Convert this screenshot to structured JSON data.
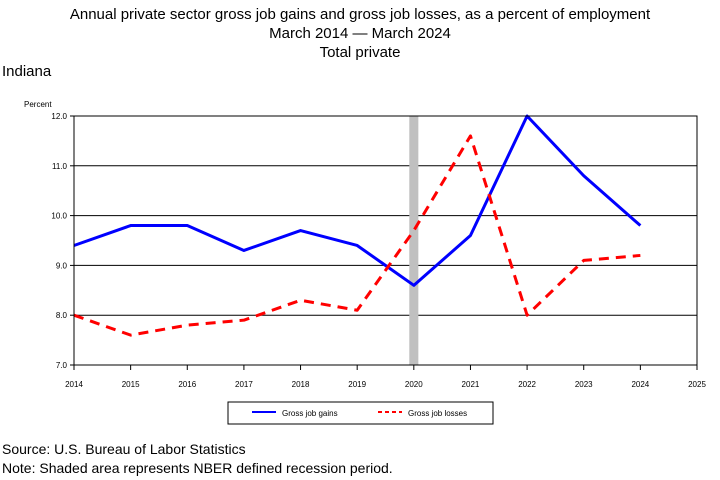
{
  "header": {
    "title_line1": "Annual private sector gross job gains and gross job losses, as a percent of employment",
    "title_line2": "March 2014 — March 2024",
    "title_line3": "Total private"
  },
  "region": "Indiana",
  "footer": {
    "source": "Source: U.S. Bureau of Labor Statistics",
    "note": "Note: Shaded area represents NBER defined recession period."
  },
  "chart_data": {
    "type": "line",
    "title": "Annual private sector gross job gains and gross job losses, as a percent of employment",
    "subtitle": "March 2014 — March 2024",
    "ylabel": "Percent",
    "xlabel": "",
    "x": [
      2014,
      2015,
      2016,
      2017,
      2018,
      2019,
      2020,
      2021,
      2022,
      2023,
      2024
    ],
    "xticks": [
      "2014",
      "2015",
      "2016",
      "2017",
      "2018",
      "2019",
      "2020",
      "2021",
      "2022",
      "2023",
      "2024",
      "2025"
    ],
    "xlim": [
      2014,
      2025
    ],
    "ylim": [
      7.0,
      12.0
    ],
    "yticks": [
      "7.0",
      "8.0",
      "9.0",
      "10.0",
      "11.0",
      "12.0"
    ],
    "grid": true,
    "legend_position": "bottom-center",
    "recession_shading": {
      "start": 2019.92,
      "end": 2020.08,
      "color": "#c0c0c0"
    },
    "series": [
      {
        "name": "Gross job gains",
        "color": "#0000ff",
        "style": "solid",
        "values": [
          9.4,
          9.8,
          9.8,
          9.3,
          9.7,
          9.4,
          8.6,
          9.6,
          12.0,
          10.8,
          9.8
        ]
      },
      {
        "name": "Gross job losses",
        "color": "#ff0000",
        "style": "dashed",
        "values": [
          8.0,
          7.6,
          7.8,
          7.9,
          8.3,
          8.1,
          9.7,
          11.6,
          8.0,
          9.1,
          9.2
        ]
      }
    ]
  }
}
